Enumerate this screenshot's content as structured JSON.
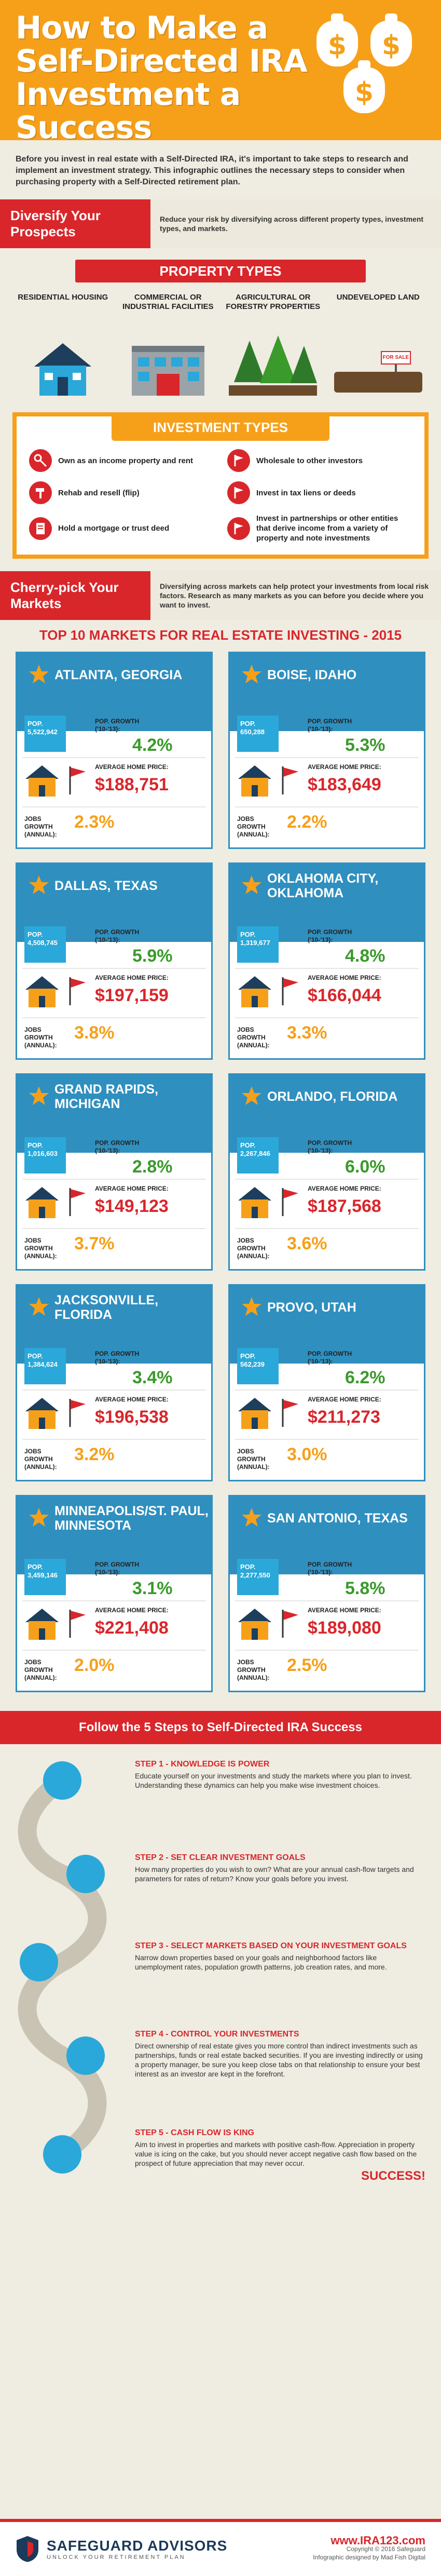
{
  "header": {
    "title": "How to Make a Self-Directed IRA Investment a Success",
    "bag_symbol": "$"
  },
  "intro": "Before you invest in real estate with a Self-Directed IRA, it's important to take steps to research and implement an investment strategy. This infographic outlines the necessary steps to consider when purchasing property with a Self-Directed retirement plan.",
  "diversify": {
    "title": "Diversify Your Prospects",
    "text": "Reduce your risk by diversifying across different property types, investment types, and markets."
  },
  "property_types": {
    "title": "PROPERTY TYPES",
    "items": [
      {
        "label": "RESIDENTIAL HOUSING"
      },
      {
        "label": "COMMERCIAL OR INDUSTRIAL FACILITIES"
      },
      {
        "label": "AGRICULTURAL OR FORESTRY PROPERTIES"
      },
      {
        "label": "UNDEVELOPED LAND",
        "sign": "FOR SALE"
      }
    ]
  },
  "investment_types": {
    "title": "INVESTMENT TYPES",
    "items": [
      {
        "label": "Own as an income property and rent",
        "icon": "key-icon"
      },
      {
        "label": "Wholesale to other investors",
        "icon": "flag-icon"
      },
      {
        "label": "Rehab and resell (flip)",
        "icon": "hammer-icon"
      },
      {
        "label": "Invest in tax liens or deeds",
        "icon": "flag-icon"
      },
      {
        "label": "Hold a mortgage or trust deed",
        "icon": "document-icon"
      },
      {
        "label": "Invest in partnerships or other entities that derive income from a variety of property and note investments",
        "icon": "flag-icon"
      }
    ]
  },
  "cherry": {
    "title": "Cherry-pick Your Markets",
    "text": "Diversifying across markets can help protect your investments from local risk factors. Research as many markets as you can before you decide where you want to invest."
  },
  "top10": {
    "title": "TOP 10 MARKETS FOR REAL ESTATE INVESTING - 2015",
    "labels": {
      "pop": "POP.",
      "growth": "POP. GROWTH ('10-'13):",
      "home": "AVERAGE HOME PRICE:",
      "jobs": "JOBS GROWTH (ANNUAL):"
    },
    "markets": [
      {
        "city": "ATLANTA, GEORGIA",
        "pop": "5,522,942",
        "growth": "4.2%",
        "home": "$188,751",
        "jobs": "2.3%"
      },
      {
        "city": "BOISE, IDAHO",
        "pop": "650,288",
        "growth": "5.3%",
        "home": "$183,649",
        "jobs": "2.2%"
      },
      {
        "city": "DALLAS, TEXAS",
        "pop": "4,508,745",
        "growth": "5.9%",
        "home": "$197,159",
        "jobs": "3.8%"
      },
      {
        "city": "OKLAHOMA CITY, OKLAHOMA",
        "pop": "1,319,677",
        "growth": "4.8%",
        "home": "$166,044",
        "jobs": "3.3%"
      },
      {
        "city": "GRAND RAPIDS, MICHIGAN",
        "pop": "1,016,603",
        "growth": "2.8%",
        "home": "$149,123",
        "jobs": "3.7%"
      },
      {
        "city": "ORLANDO, FLORIDA",
        "pop": "2,267,846",
        "growth": "6.0%",
        "home": "$187,568",
        "jobs": "3.6%"
      },
      {
        "city": "JACKSONVILLE, FLORIDA",
        "pop": "1,384,624",
        "growth": "3.4%",
        "home": "$196,538",
        "jobs": "3.2%"
      },
      {
        "city": "PROVO, UTAH",
        "pop": "562,239",
        "growth": "6.2%",
        "home": "$211,273",
        "jobs": "3.0%"
      },
      {
        "city": "MINNEAPOLIS/ST. PAUL, MINNESOTA",
        "pop": "3,459,146",
        "growth": "3.1%",
        "home": "$221,408",
        "jobs": "2.0%"
      },
      {
        "city": "SAN ANTONIO, TEXAS",
        "pop": "2,277,550",
        "growth": "5.8%",
        "home": "$189,080",
        "jobs": "2.5%"
      }
    ]
  },
  "steps": {
    "title": "Follow the 5 Steps to Self-Directed IRA Success",
    "items": [
      {
        "title": "STEP 1 - Knowledge is Power",
        "text": "Educate yourself on your investments and study the markets where you plan to invest. Understanding these dynamics can help you make wise investment choices."
      },
      {
        "title": "STEP 2 - Set Clear Investment Goals",
        "text": "How many properties do you wish to own? What are your annual cash-flow targets and parameters for rates of return? Know your goals before you invest."
      },
      {
        "title": "STEP 3 - Select Markets Based on Your Investment Goals",
        "text": "Narrow down properties based on your goals and neighborhood factors like unemployment rates, population growth patterns, job creation rates, and more."
      },
      {
        "title": "STEP 4 - Control Your Investments",
        "text": "Direct ownership of real estate gives you more control than indirect investments such as partnerships, funds or real estate backed securities. If you are investing indirectly or using a property manager, be sure you keep close tabs on that relationship to ensure your best interest as an investor are kept in the forefront."
      },
      {
        "title": "STEP 5 - Cash Flow is King",
        "text": "Aim to invest in properties and markets with positive cash-flow. Appreciation in property value is icing on the cake, but you should never accept negative cash flow based on the prospect of future appreciation that may never occur."
      }
    ],
    "success": "SUCCESS!"
  },
  "footer": {
    "brand": "SAFEGUARD ADVISORS",
    "tagline": "UNLOCK YOUR RETIREMENT PLAN",
    "url": "www.IRA123.com",
    "copyright": "Copyright © 2016 Safeguard",
    "credit": "Infographic designed by Mad Fish Digital"
  },
  "colors": {
    "orange": "#f6a01a",
    "red": "#d9262b",
    "blue": "#2f8fbf",
    "green": "#3a9a2b"
  }
}
